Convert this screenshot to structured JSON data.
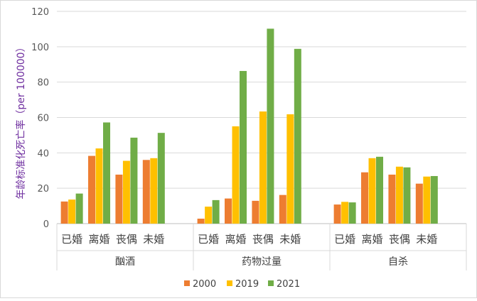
{
  "chart_data": {
    "type": "bar",
    "ylabel": "年龄标准化死亡率（per 100000）",
    "ylim": [
      0,
      120
    ],
    "yticks": [
      0,
      20,
      40,
      60,
      80,
      100,
      120
    ],
    "grid": true,
    "legend_position": "bottom",
    "groups": [
      {
        "name": "酗酒",
        "categories": [
          "已婚",
          "离婚",
          "丧偶",
          "未婚"
        ]
      },
      {
        "name": "药物过量",
        "categories": [
          "已婚",
          "离婚",
          "丧偶",
          "未婚"
        ]
      },
      {
        "name": "自杀",
        "categories": [
          "已婚",
          "离婚",
          "丧偶",
          "未婚"
        ]
      }
    ],
    "series": [
      {
        "name": "2000",
        "color": "#ED7D31",
        "values": [
          12.5,
          38.3,
          27.7,
          36.0,
          2.8,
          14.2,
          12.9,
          16.2,
          10.8,
          29.0,
          27.7,
          22.6
        ]
      },
      {
        "name": "2019",
        "color": "#FFC000",
        "values": [
          13.6,
          42.5,
          35.5,
          37.0,
          9.6,
          55.0,
          63.4,
          61.8,
          12.3,
          37.0,
          32.2,
          26.6
        ]
      },
      {
        "name": "2021",
        "color": "#70AD47",
        "values": [
          17.0,
          57.2,
          48.6,
          51.3,
          13.3,
          86.3,
          110.2,
          98.8,
          12.0,
          37.8,
          31.8,
          26.9
        ]
      }
    ]
  }
}
